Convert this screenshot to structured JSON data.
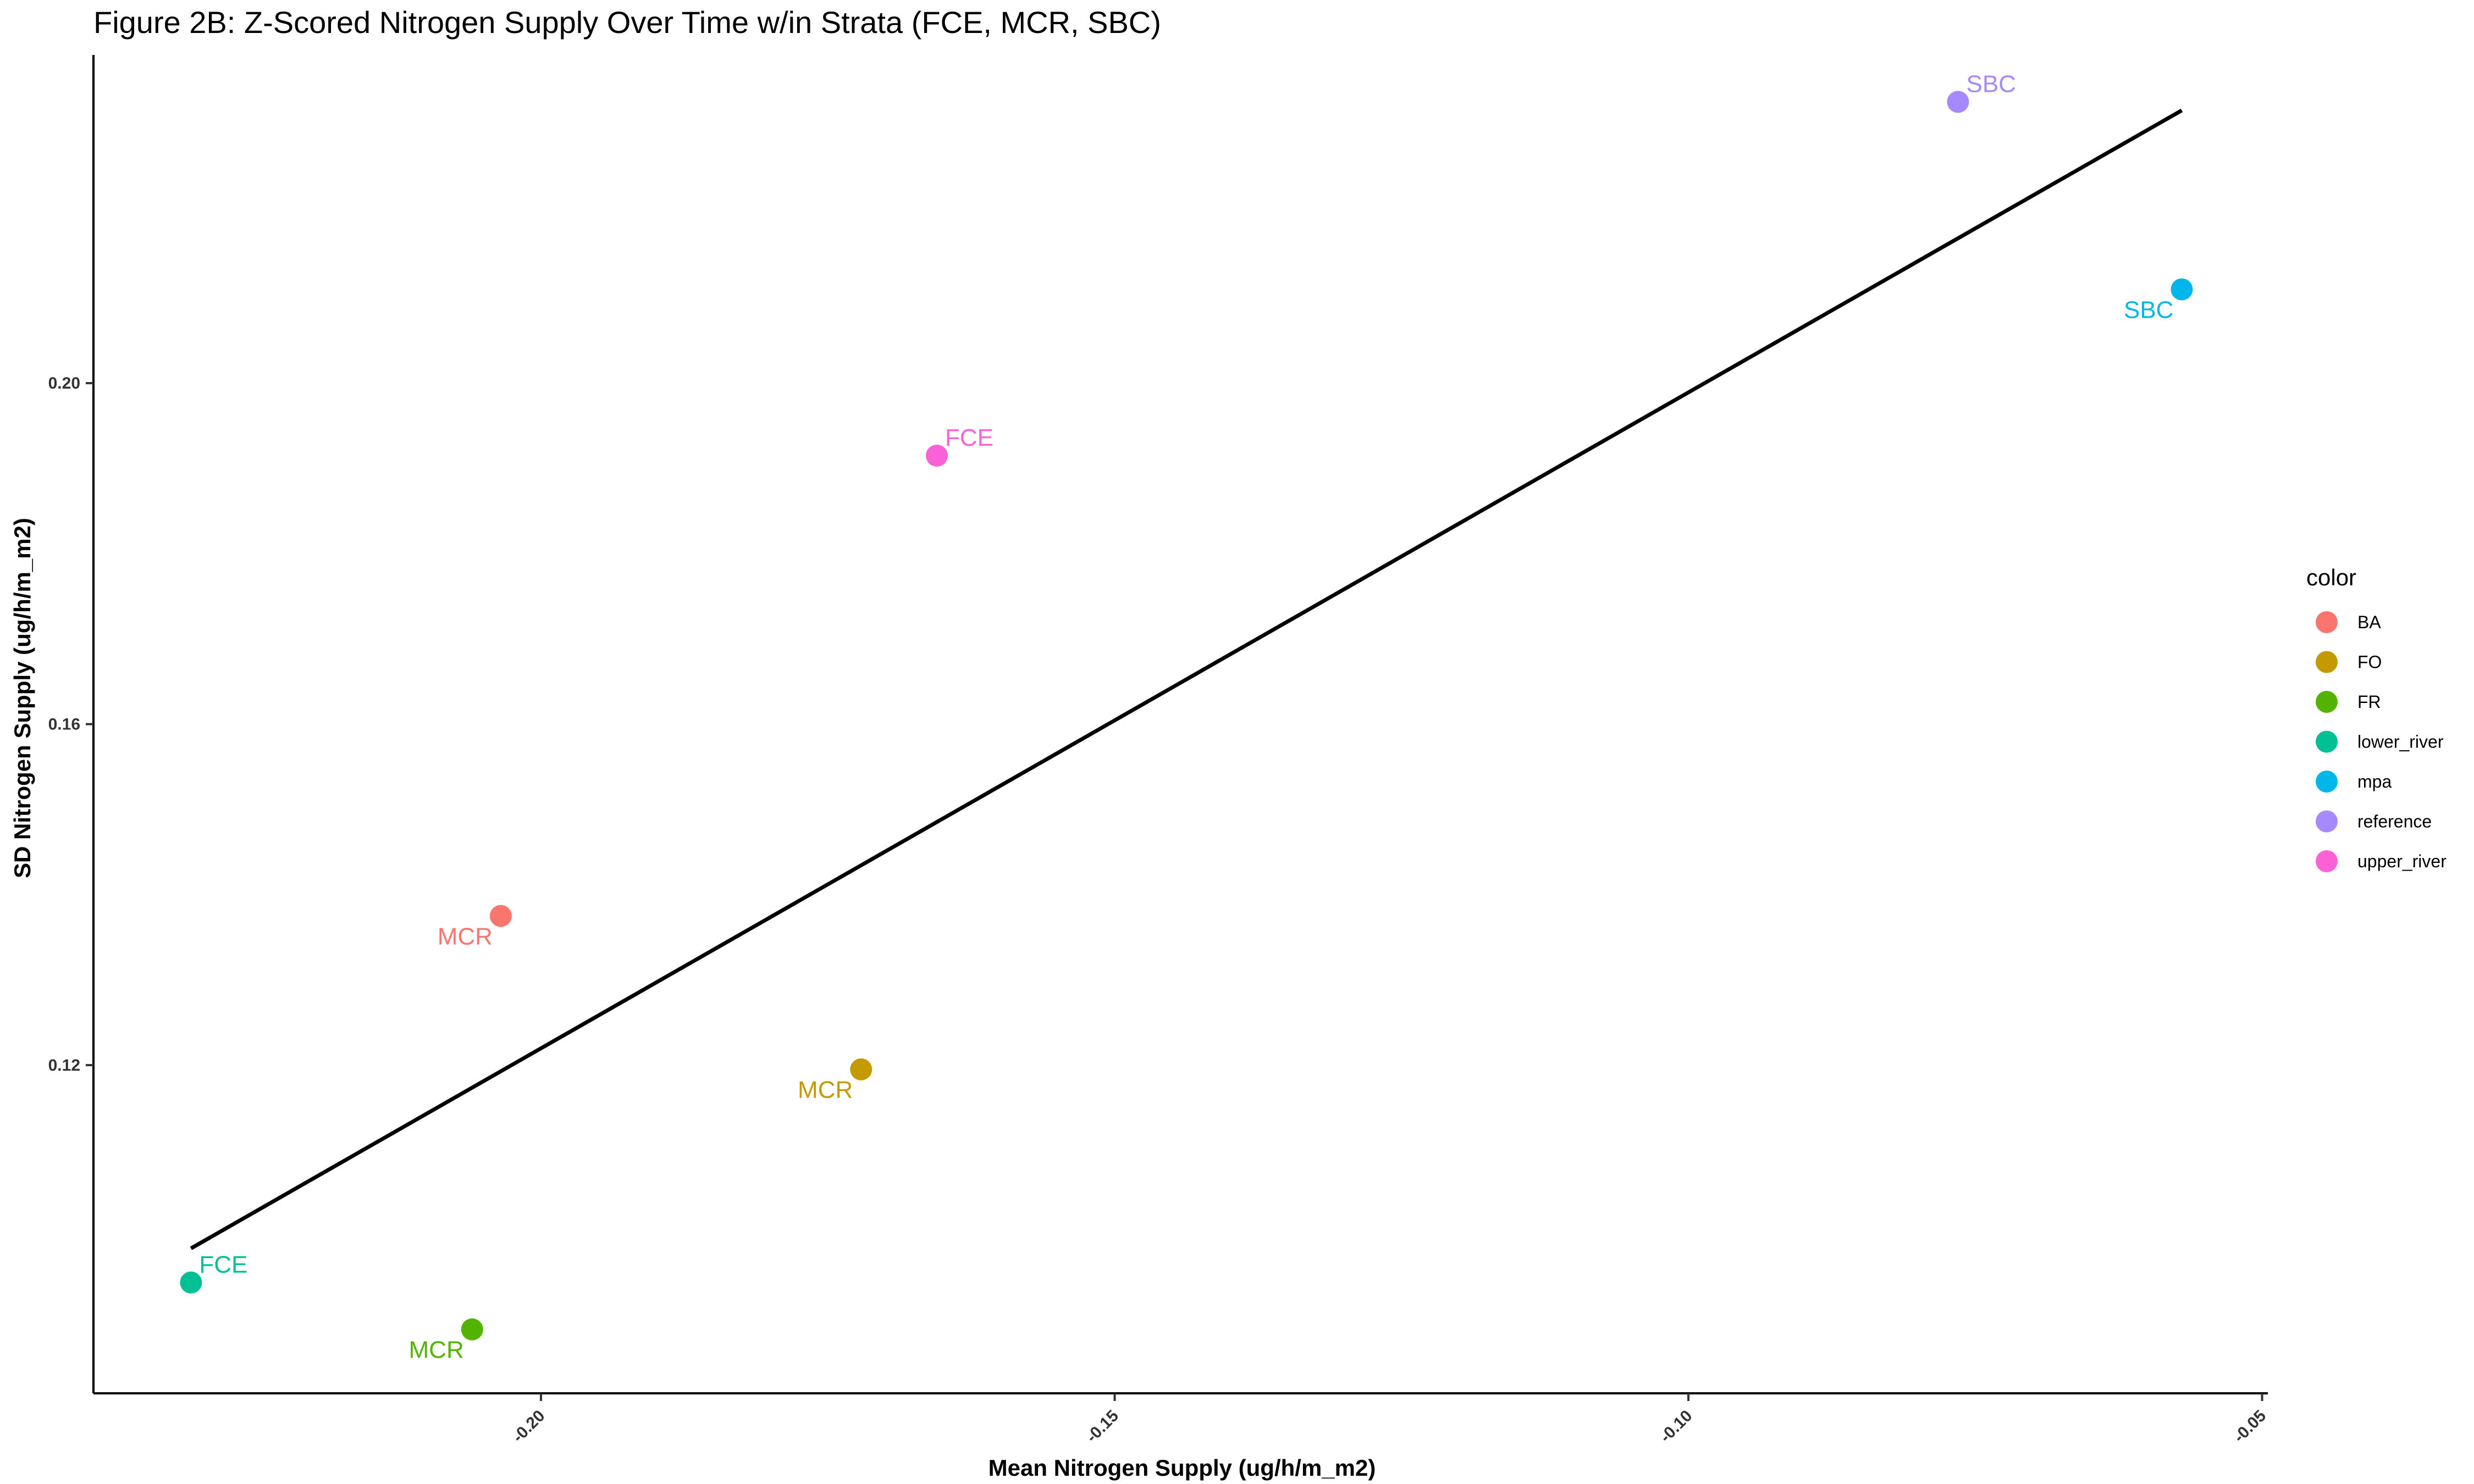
{
  "chart_data": {
    "type": "scatter",
    "title": "Figure 2B: Z-Scored Nitrogen Supply Over Time w/in Strata (FCE, MCR, SBC)",
    "xlabel": "Mean Nitrogen Supply (ug/h/m_m2)",
    "ylabel": "SD Nitrogen Supply (ug/h/m_m2)",
    "xlim": [
      -0.239,
      -0.0495
    ],
    "ylim": [
      0.0815,
      0.2385
    ],
    "x_ticks": [
      -0.2,
      -0.15,
      -0.1,
      -0.05
    ],
    "x_tick_labels": [
      "-0.20",
      "-0.15",
      "-0.10",
      "-0.05"
    ],
    "y_ticks": [
      0.12,
      0.16,
      0.2
    ],
    "y_tick_labels": [
      "0.12",
      "0.16",
      "0.20"
    ],
    "points": [
      {
        "x": -0.2035,
        "y": 0.1375,
        "label": "MCR",
        "color_group": "BA",
        "color": "#F8766D",
        "label_side": "below-left"
      },
      {
        "x": -0.1721,
        "y": 0.1195,
        "label": "MCR",
        "color_group": "FO",
        "color": "#C49A00",
        "label_side": "below-left"
      },
      {
        "x": -0.206,
        "y": 0.089,
        "label": "MCR",
        "color_group": "FR",
        "color": "#53B400",
        "label_side": "below-left"
      },
      {
        "x": -0.2305,
        "y": 0.0945,
        "label": "FCE",
        "color_group": "lower_river",
        "color": "#00C094",
        "label_side": "above-right"
      },
      {
        "x": -0.057,
        "y": 0.211,
        "label": "SBC",
        "color_group": "mpa",
        "color": "#00B6EB",
        "label_side": "below-left"
      },
      {
        "x": -0.0765,
        "y": 0.233,
        "label": "SBC",
        "color_group": "reference",
        "color": "#A58AFF",
        "label_side": "above-right"
      },
      {
        "x": -0.1655,
        "y": 0.1915,
        "label": "FCE",
        "color_group": "upper_river",
        "color": "#FB61D7",
        "label_side": "above-right"
      }
    ],
    "fit_line": {
      "x": [
        -0.2305,
        -0.057
      ],
      "y": [
        0.0985,
        0.232
      ],
      "color": "#000000"
    },
    "legend": {
      "title": "color",
      "position": "right",
      "entries": [
        {
          "label": "BA",
          "color": "#F8766D"
        },
        {
          "label": "FO",
          "color": "#C49A00"
        },
        {
          "label": "FR",
          "color": "#53B400"
        },
        {
          "label": "lower_river",
          "color": "#00C094"
        },
        {
          "label": "mpa",
          "color": "#00B6EB"
        },
        {
          "label": "reference",
          "color": "#A58AFF"
        },
        {
          "label": "upper_river",
          "color": "#FB61D7"
        }
      ]
    },
    "grid": false
  }
}
